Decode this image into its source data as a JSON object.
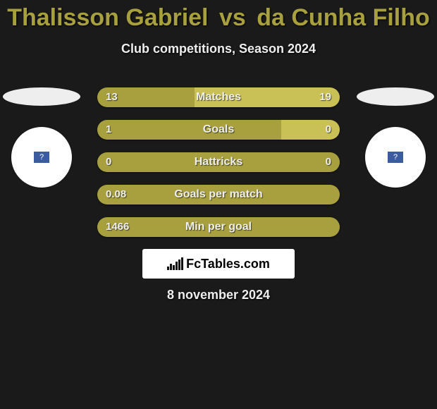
{
  "title": {
    "player_a": "Thalisson Gabriel",
    "vs": "vs",
    "player_b": "da Cunha Filho",
    "color": "#a8a03e"
  },
  "subtitle": "Club competitions, Season 2024",
  "colors": {
    "bar_a": "#a8a03e",
    "bar_b": "#c9c155",
    "text": "#eeeeee",
    "background": "#1a1a1a",
    "flag": "#eeeeee",
    "badge_bg": "#ffffff",
    "badge_inner": "#3b5da0"
  },
  "bars": [
    {
      "label": "Matches",
      "a": "13",
      "b": "19",
      "a_pct": 40,
      "b_pct": 60
    },
    {
      "label": "Goals",
      "a": "1",
      "b": "0",
      "a_pct": 76,
      "b_pct": 24
    },
    {
      "label": "Hattricks",
      "a": "0",
      "b": "0",
      "a_pct": 100,
      "b_pct": 0
    },
    {
      "label": "Goals per match",
      "a": "0.08",
      "b": "",
      "a_pct": 100,
      "b_pct": 0
    },
    {
      "label": "Min per goal",
      "a": "1466",
      "b": "",
      "a_pct": 100,
      "b_pct": 0
    }
  ],
  "logo": {
    "text": "FcTables.com"
  },
  "date": "8 november 2024"
}
